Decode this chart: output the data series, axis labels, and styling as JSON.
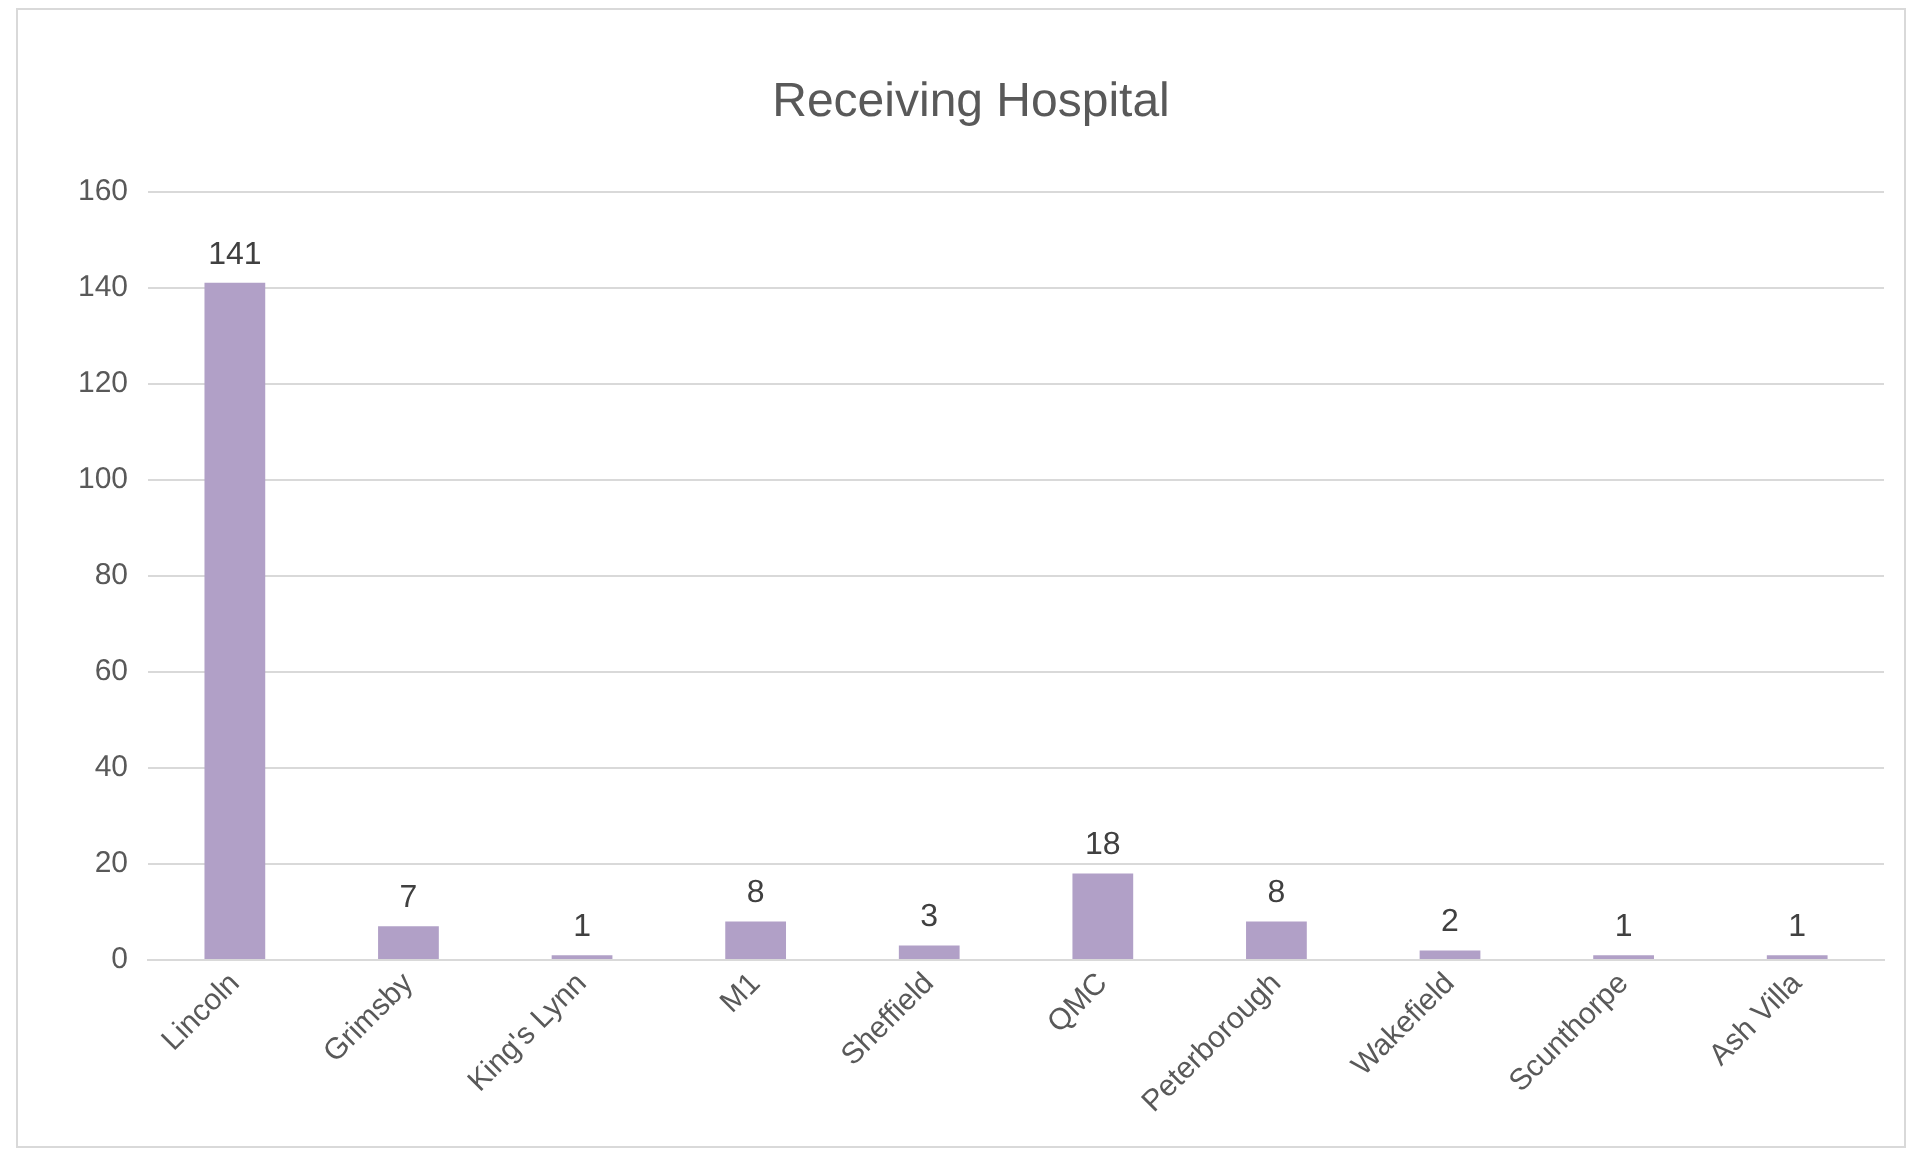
{
  "chart_data": {
    "type": "bar",
    "title": "Receiving Hospital",
    "categories": [
      "Lincoln",
      "Grimsby",
      "King's Lynn",
      "M1",
      "Sheffield",
      "QMC",
      "Peterborough",
      "Wakefield",
      "Scunthorpe",
      "Ash Villa"
    ],
    "values": [
      141,
      7,
      1,
      8,
      3,
      18,
      8,
      2,
      1,
      1
    ],
    "color": "#b1a0c7",
    "ylim": [
      0,
      160
    ],
    "yticks": [
      0,
      20,
      40,
      60,
      80,
      100,
      120,
      140,
      160
    ],
    "grid": "y",
    "data_labels": true
  }
}
